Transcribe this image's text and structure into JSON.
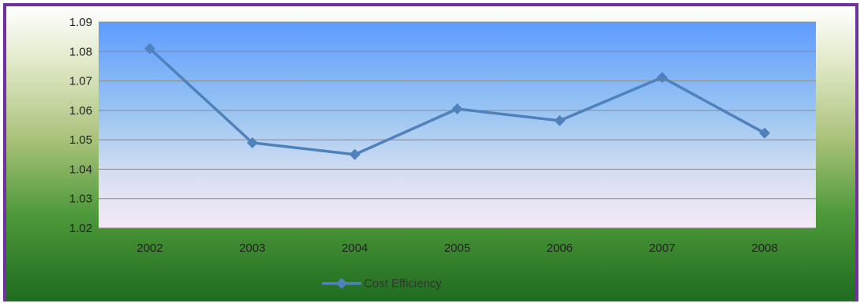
{
  "chart_data": {
    "type": "line",
    "categories": [
      "2002",
      "2003",
      "2004",
      "2005",
      "2006",
      "2007",
      "2008"
    ],
    "series": [
      {
        "name": "Cost Efficiency",
        "values": [
          1.081,
          1.049,
          1.045,
          1.0605,
          1.0565,
          1.0712,
          1.0523
        ],
        "color": "#4f81bd"
      }
    ],
    "ylim": [
      1.02,
      1.09
    ],
    "yticks": [
      "1.09",
      "1.08",
      "1.07",
      "1.06",
      "1.05",
      "1.04",
      "1.03",
      "1.02"
    ],
    "grid": "horizontal",
    "legend": "bottom",
    "title": "",
    "xlabel": "",
    "ylabel": ""
  },
  "colors": {
    "frame_border": "#7030a0",
    "plot_top": "#5fa0ff",
    "plot_bottom": "#f4e8f6",
    "line": "#4f81bd",
    "gridline": "#8a8a8a"
  }
}
